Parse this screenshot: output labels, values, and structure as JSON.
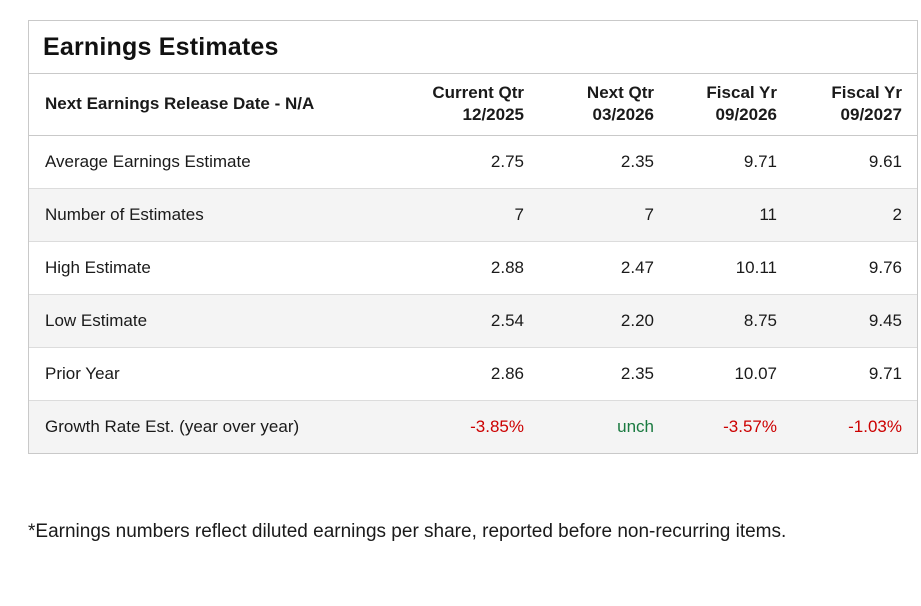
{
  "title": "Earnings Estimates",
  "table": {
    "header": {
      "label": "Next Earnings Release Date - N/A",
      "columns": [
        {
          "line1": "Current Qtr",
          "line2": "12/2025"
        },
        {
          "line1": "Next Qtr",
          "line2": "03/2026"
        },
        {
          "line1": "Fiscal Yr",
          "line2": "09/2026"
        },
        {
          "line1": "Fiscal Yr",
          "line2": "09/2027"
        }
      ]
    },
    "rows": [
      {
        "label": "Average Earnings Estimate",
        "values": [
          "2.75",
          "2.35",
          "9.71",
          "9.61"
        ]
      },
      {
        "label": "Number of Estimates",
        "values": [
          "7",
          "7",
          "11",
          "2"
        ]
      },
      {
        "label": "High Estimate",
        "values": [
          "2.88",
          "2.47",
          "10.11",
          "9.76"
        ]
      },
      {
        "label": "Low Estimate",
        "values": [
          "2.54",
          "2.20",
          "8.75",
          "9.45"
        ]
      },
      {
        "label": "Prior Year",
        "values": [
          "2.86",
          "2.35",
          "10.07",
          "9.71"
        ]
      },
      {
        "label": "Growth Rate Est. (year over year)",
        "values": [
          "-3.85%",
          "unch",
          "-3.57%",
          "-1.03%"
        ]
      }
    ]
  },
  "footnote": "*Earnings numbers reflect diluted earnings per share, reported before non-recurring items.",
  "colors": {
    "negative": "#cc0000",
    "positive": "#1a7a40",
    "row_stripe": "#f4f4f4",
    "border": "#c9c9c9",
    "row_line": "#dcdcdc"
  },
  "chart_data": {
    "type": "table",
    "title": "Earnings Estimates",
    "columns": [
      "Next Earnings Release Date - N/A",
      "Current Qtr 12/2025",
      "Next Qtr 03/2026",
      "Fiscal Yr 09/2026",
      "Fiscal Yr 09/2027"
    ],
    "rows": [
      [
        "Average Earnings Estimate",
        2.75,
        2.35,
        9.71,
        9.61
      ],
      [
        "Number of Estimates",
        7,
        7,
        11,
        2
      ],
      [
        "High Estimate",
        2.88,
        2.47,
        10.11,
        9.76
      ],
      [
        "Low Estimate",
        2.54,
        2.2,
        8.75,
        9.45
      ],
      [
        "Prior Year",
        2.86,
        2.35,
        10.07,
        9.71
      ],
      [
        "Growth Rate Est. (year over year)",
        "-3.85%",
        "unch",
        "-3.57%",
        "-1.03%"
      ]
    ],
    "value_styles_last_row": [
      "negative",
      "positive",
      "negative",
      "negative"
    ],
    "footnote": "*Earnings numbers reflect diluted earnings per share, reported before non-recurring items."
  }
}
